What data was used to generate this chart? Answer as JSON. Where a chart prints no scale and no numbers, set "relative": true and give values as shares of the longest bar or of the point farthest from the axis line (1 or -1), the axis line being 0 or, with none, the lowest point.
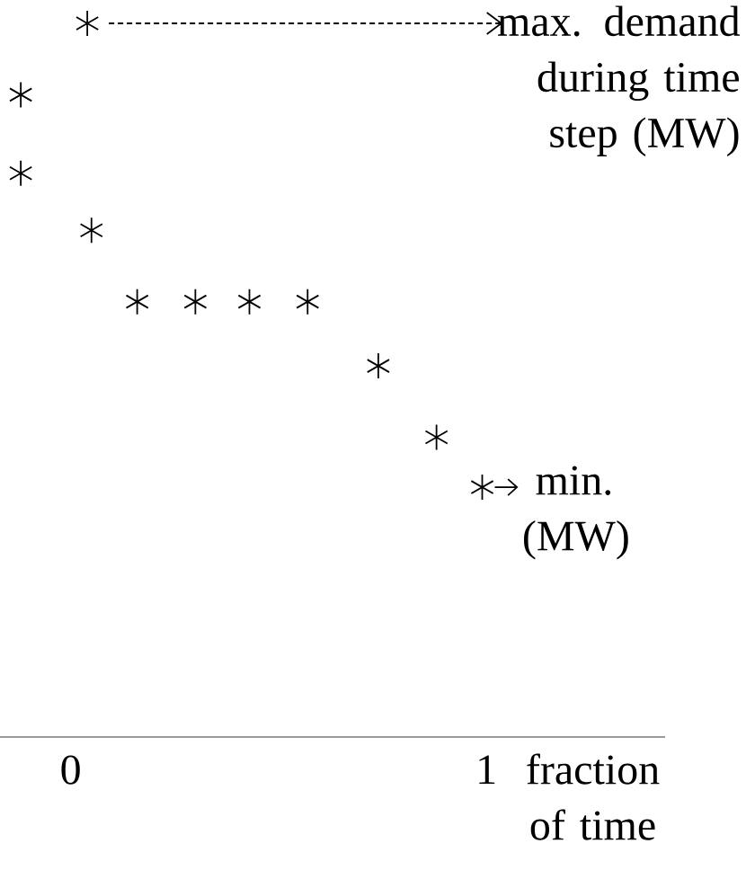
{
  "chart_data": {
    "type": "scatter",
    "relative": true,
    "x": [
      -0.12,
      -0.12,
      0.04,
      0.05,
      0.16,
      0.3,
      0.43,
      0.57,
      0.74,
      0.88,
      0.99
    ],
    "series": [
      {
        "color": "#000000",
        "values": [
          0.9,
          0.79,
          1,
          0.71,
          0.61,
          0.61,
          0.61,
          0.61,
          0.52,
          0.42,
          0.35
        ]
      }
    ],
    "xlim": [
      -0.17,
      1.43
    ],
    "xticks": [
      0,
      1
    ],
    "xlabel": "fraction of time",
    "marker": "cross",
    "grid": false,
    "annotations": [
      "max. demand during time step (MW)",
      {
        "text": "min. (MW)",
        "x": 0.99,
        "y": 0.35
      }
    ]
  }
}
